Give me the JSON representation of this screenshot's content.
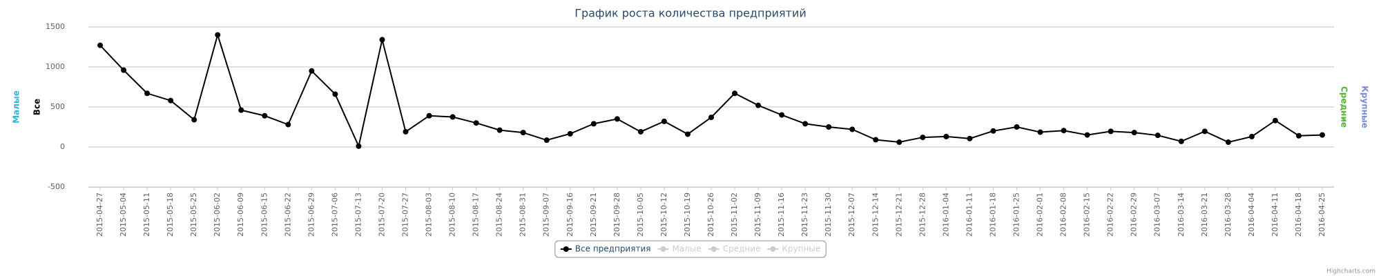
{
  "chart_data": {
    "type": "line",
    "title": "График роста количества предприятий",
    "axis_titles": [
      {
        "text": "Малые",
        "color": "#2fb3d9",
        "side": "left"
      },
      {
        "text": "Все",
        "color": "#000000",
        "side": "left"
      },
      {
        "text": "Средние",
        "color": "#50b432",
        "side": "right"
      },
      {
        "text": "Крупные",
        "color": "#7a8bd6",
        "side": "right"
      }
    ],
    "categories": [
      "2015-04-27",
      "2015-05-04",
      "2015-05-11",
      "2015-05-18",
      "2015-05-25",
      "2015-06-02",
      "2015-06-09",
      "2015-06-15",
      "2015-06-22",
      "2015-06-29",
      "2015-07-06",
      "2015-07-13",
      "2015-07-20",
      "2015-07-27",
      "2015-08-03",
      "2015-08-10",
      "2015-08-17",
      "2015-08-24",
      "2015-08-31",
      "2015-09-07",
      "2015-09-16",
      "2015-09-21",
      "2015-09-28",
      "2015-10-05",
      "2015-10-12",
      "2015-10-19",
      "2015-10-26",
      "2015-11-02",
      "2015-11-09",
      "2015-11-16",
      "2015-11-23",
      "2015-11-30",
      "2015-12-07",
      "2015-12-14",
      "2015-12-21",
      "2015-12-28",
      "2016-01-04",
      "2016-01-11",
      "2016-01-18",
      "2016-01-25",
      "2016-02-01",
      "2016-02-08",
      "2016-02-15",
      "2016-02-22",
      "2016-02-29",
      "2016-03-07",
      "2016-03-14",
      "2016-03-21",
      "2016-03-28",
      "2016-04-04",
      "2016-04-11",
      "2016-04-18",
      "2016-04-25"
    ],
    "series": [
      {
        "name": "Все предприятия",
        "color": "#000000",
        "visible": true,
        "values": [
          1270,
          960,
          670,
          580,
          340,
          1400,
          460,
          390,
          280,
          950,
          660,
          10,
          1340,
          190,
          390,
          375,
          300,
          210,
          180,
          85,
          165,
          290,
          350,
          190,
          320,
          160,
          370,
          670,
          520,
          400,
          290,
          250,
          220,
          90,
          60,
          120,
          130,
          105,
          200,
          250,
          185,
          205,
          150,
          195,
          180,
          145,
          70,
          195,
          60,
          130,
          330,
          140,
          150
        ]
      },
      {
        "name": "Малые",
        "color": "#2fb3d9",
        "visible": false
      },
      {
        "name": "Средние",
        "color": "#50b432",
        "visible": false
      },
      {
        "name": "Крупные",
        "color": "#7a8bd6",
        "visible": false
      }
    ],
    "ylim": [
      -500,
      1500
    ],
    "yticks": [
      -500,
      0,
      500,
      1000,
      1500
    ],
    "grid": true,
    "legend": "bottom",
    "credits": "Highcharts.com"
  }
}
